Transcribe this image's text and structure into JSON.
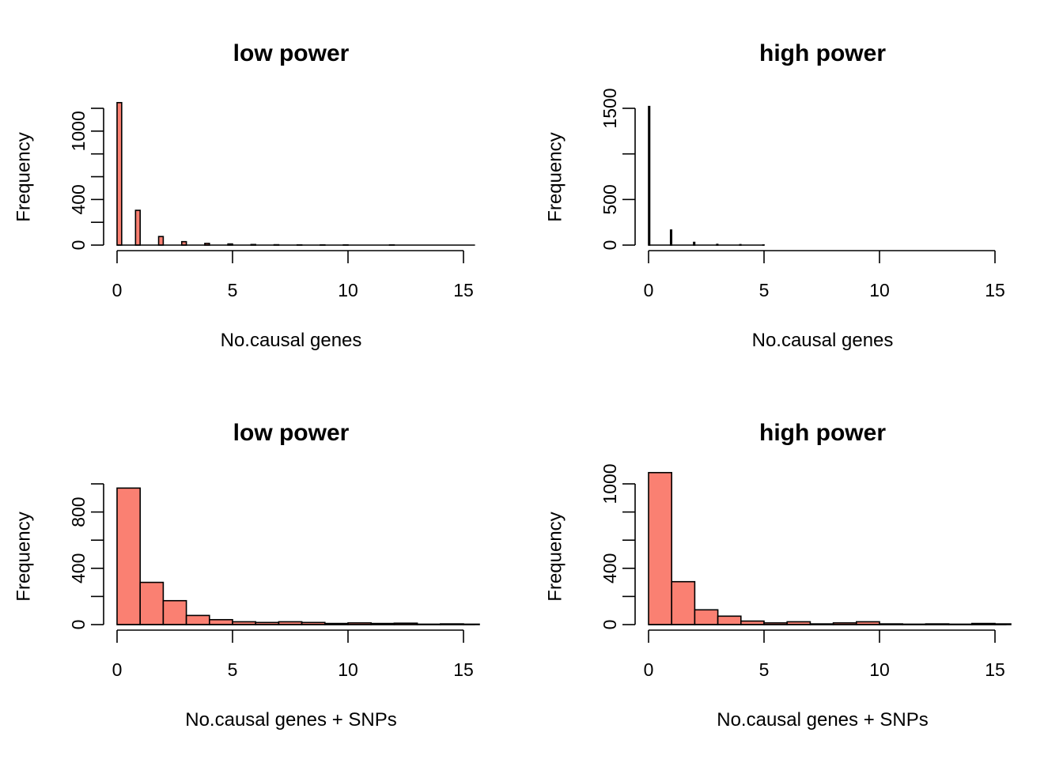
{
  "chart_data": [
    {
      "type": "bar",
      "title": "low power",
      "xlabel": "No.causal genes",
      "ylabel": "Frequency",
      "fill": "#FA8072",
      "bin_width": 0.2,
      "xlim": [
        0,
        15.5
      ],
      "ylim": [
        0,
        1200
      ],
      "xticks": [
        0,
        5,
        10,
        15
      ],
      "xtick_labels": [
        "0",
        "5",
        "10",
        "15"
      ],
      "yticks": [
        0,
        200,
        400,
        600,
        800,
        1000,
        1200
      ],
      "ytick_labels": [
        "0",
        "",
        "400",
        "",
        "",
        "1000",
        ""
      ],
      "bins": [
        {
          "x0": 0,
          "x1": 0.2,
          "value": 1250
        },
        {
          "x0": 0.8,
          "x1": 1.0,
          "value": 305
        },
        {
          "x0": 1.8,
          "x1": 2.0,
          "value": 75
        },
        {
          "x0": 2.8,
          "x1": 3.0,
          "value": 30
        },
        {
          "x0": 3.8,
          "x1": 4.0,
          "value": 15
        },
        {
          "x0": 4.8,
          "x1": 5.0,
          "value": 10
        },
        {
          "x0": 5.8,
          "x1": 6.0,
          "value": 5
        },
        {
          "x0": 6.8,
          "x1": 7.0,
          "value": 3
        },
        {
          "x0": 7.8,
          "x1": 8.0,
          "value": 2
        },
        {
          "x0": 8.8,
          "x1": 9.0,
          "value": 2
        },
        {
          "x0": 9.8,
          "x1": 10.0,
          "value": 2
        },
        {
          "x0": 11.8,
          "x1": 12.0,
          "value": 2
        }
      ]
    },
    {
      "type": "bar",
      "title": "high power",
      "xlabel": "No.causal genes",
      "ylabel": "Frequency",
      "fill": "#FA8072",
      "bin_width": 0.05,
      "xlim": [
        0,
        15
      ],
      "ylim": [
        0,
        1500
      ],
      "xticks": [
        0,
        5,
        10,
        15
      ],
      "xtick_labels": [
        "0",
        "5",
        "10",
        "15"
      ],
      "yticks": [
        0,
        500,
        1000,
        1500
      ],
      "ytick_labels": [
        "0",
        "500",
        "",
        "1500"
      ],
      "bins": [
        {
          "x0": 0,
          "x1": 0.05,
          "value": 1520
        },
        {
          "x0": 0.95,
          "x1": 1.0,
          "value": 165
        },
        {
          "x0": 1.95,
          "x1": 2.0,
          "value": 30
        },
        {
          "x0": 2.95,
          "x1": 3.0,
          "value": 8
        },
        {
          "x0": 3.95,
          "x1": 4.0,
          "value": 5
        },
        {
          "x0": 4.95,
          "x1": 5.0,
          "value": 2
        }
      ]
    },
    {
      "type": "bar",
      "title": "low power",
      "xlabel": "No.causal genes + SNPs",
      "ylabel": "Frequency",
      "fill": "#FA8072",
      "bin_width": 1,
      "xlim": [
        0,
        15.5
      ],
      "ylim": [
        0,
        1000
      ],
      "xticks": [
        0,
        5,
        10,
        15
      ],
      "xtick_labels": [
        "0",
        "5",
        "10",
        "15"
      ],
      "yticks": [
        0,
        200,
        400,
        600,
        800,
        1000
      ],
      "ytick_labels": [
        "0",
        "",
        "400",
        "",
        "800",
        ""
      ],
      "bins": [
        {
          "x0": 0,
          "x1": 1,
          "value": 970
        },
        {
          "x0": 1,
          "x1": 2,
          "value": 300
        },
        {
          "x0": 2,
          "x1": 3,
          "value": 170
        },
        {
          "x0": 3,
          "x1": 4,
          "value": 65
        },
        {
          "x0": 4,
          "x1": 5,
          "value": 35
        },
        {
          "x0": 5,
          "x1": 6,
          "value": 20
        },
        {
          "x0": 6,
          "x1": 7,
          "value": 15
        },
        {
          "x0": 7,
          "x1": 8,
          "value": 20
        },
        {
          "x0": 8,
          "x1": 9,
          "value": 15
        },
        {
          "x0": 9,
          "x1": 10,
          "value": 8
        },
        {
          "x0": 10,
          "x1": 11,
          "value": 12
        },
        {
          "x0": 11,
          "x1": 12,
          "value": 8
        },
        {
          "x0": 12,
          "x1": 13,
          "value": 10
        },
        {
          "x0": 13,
          "x1": 14,
          "value": 3
        },
        {
          "x0": 14,
          "x1": 15,
          "value": 5
        },
        {
          "x0": 15,
          "x1": 16,
          "value": 3
        }
      ]
    },
    {
      "type": "bar",
      "title": "high power",
      "xlabel": "No.causal genes + SNPs",
      "ylabel": "Frequency",
      "fill": "#FA8072",
      "bin_width": 1,
      "xlim": [
        0,
        15.5
      ],
      "ylim": [
        0,
        1100
      ],
      "xticks": [
        0,
        5,
        10,
        15
      ],
      "xtick_labels": [
        "0",
        "5",
        "10",
        "15"
      ],
      "yticks": [
        0,
        200,
        400,
        600,
        800,
        1000
      ],
      "ytick_labels": [
        "0",
        "",
        "400",
        "",
        "",
        "1000"
      ],
      "bins": [
        {
          "x0": 0,
          "x1": 1,
          "value": 1080
        },
        {
          "x0": 1,
          "x1": 2,
          "value": 305
        },
        {
          "x0": 2,
          "x1": 3,
          "value": 105
        },
        {
          "x0": 3,
          "x1": 4,
          "value": 60
        },
        {
          "x0": 4,
          "x1": 5,
          "value": 25
        },
        {
          "x0": 5,
          "x1": 6,
          "value": 12
        },
        {
          "x0": 6,
          "x1": 7,
          "value": 20
        },
        {
          "x0": 7,
          "x1": 8,
          "value": 5
        },
        {
          "x0": 8,
          "x1": 9,
          "value": 12
        },
        {
          "x0": 9,
          "x1": 10,
          "value": 20
        },
        {
          "x0": 10,
          "x1": 11,
          "value": 5
        },
        {
          "x0": 11,
          "x1": 12,
          "value": 3
        },
        {
          "x0": 12,
          "x1": 13,
          "value": 5
        },
        {
          "x0": 13,
          "x1": 14,
          "value": 3
        },
        {
          "x0": 14,
          "x1": 15,
          "value": 8
        },
        {
          "x0": 15,
          "x1": 16,
          "value": 5
        }
      ]
    }
  ]
}
